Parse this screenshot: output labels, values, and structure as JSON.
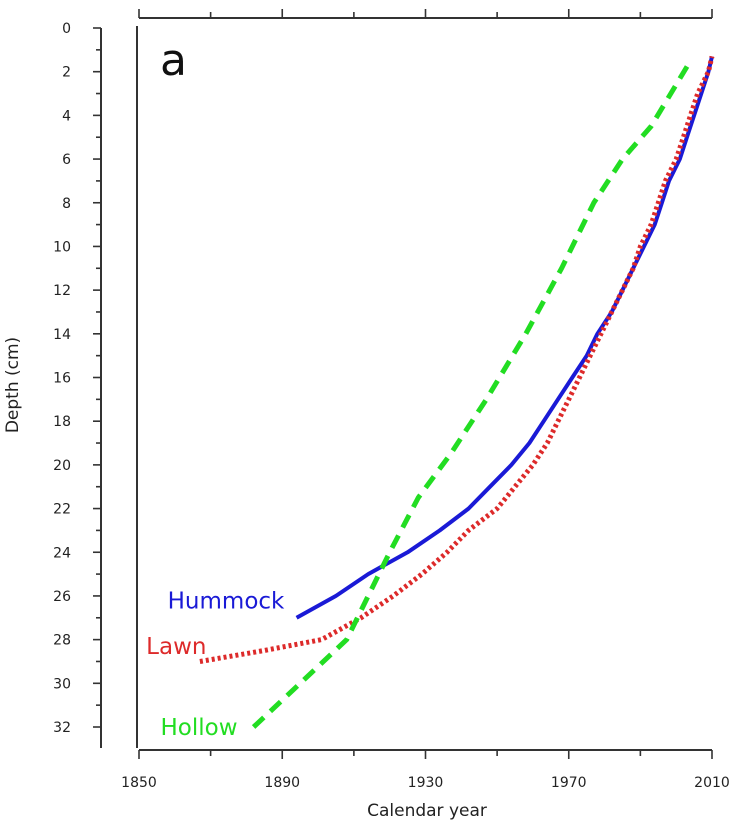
{
  "chart_data": {
    "type": "line",
    "panel_label": "a",
    "xlabel": "Calendar year",
    "ylabel": "Depth (cm)",
    "xlim": [
      1850,
      2010
    ],
    "ylim": [
      0,
      32
    ],
    "y_inverted": true,
    "x_ticks": [
      1850,
      1890,
      1930,
      1970,
      2010
    ],
    "y_ticks": [
      0,
      2,
      4,
      6,
      8,
      10,
      12,
      14,
      16,
      18,
      20,
      22,
      24,
      26,
      28,
      30,
      32
    ],
    "grid": false,
    "series": [
      {
        "name": "Hummock",
        "color": "#1a1ad6",
        "style": "solid",
        "points": [
          [
            1894,
            27
          ],
          [
            1905,
            26
          ],
          [
            1914,
            25
          ],
          [
            1925,
            24
          ],
          [
            1934,
            23
          ],
          [
            1942,
            22
          ],
          [
            1948,
            21
          ],
          [
            1954,
            20
          ],
          [
            1959,
            19
          ],
          [
            1963,
            18
          ],
          [
            1967,
            17
          ],
          [
            1971,
            16
          ],
          [
            1975,
            15
          ],
          [
            1978,
            14
          ],
          [
            1982,
            13
          ],
          [
            1985,
            12
          ],
          [
            1988,
            11
          ],
          [
            1991,
            10
          ],
          [
            1994,
            9
          ],
          [
            1996,
            8
          ],
          [
            1998,
            7
          ],
          [
            2001,
            6
          ],
          [
            2003,
            5
          ],
          [
            2005,
            4
          ],
          [
            2007,
            3
          ],
          [
            2009,
            2
          ],
          [
            2010,
            1.3
          ]
        ]
      },
      {
        "name": "Lawn",
        "color": "#dd2a2a",
        "style": "dotted",
        "points": [
          [
            1867,
            29
          ],
          [
            1885,
            28.5
          ],
          [
            1901,
            28
          ],
          [
            1912,
            27
          ],
          [
            1921,
            26
          ],
          [
            1929,
            25
          ],
          [
            1936,
            24
          ],
          [
            1942,
            23
          ],
          [
            1950,
            22
          ],
          [
            1955,
            21
          ],
          [
            1960,
            20
          ],
          [
            1964,
            19
          ],
          [
            1967,
            18
          ],
          [
            1970,
            17
          ],
          [
            1973,
            16
          ],
          [
            1976,
            15
          ],
          [
            1979,
            14
          ],
          [
            1982,
            13
          ],
          [
            1985,
            12
          ],
          [
            1988,
            11
          ],
          [
            1990,
            10
          ],
          [
            1993,
            9
          ],
          [
            1995,
            8
          ],
          [
            1997,
            7
          ],
          [
            2000,
            6
          ],
          [
            2002,
            5
          ],
          [
            2004,
            4
          ],
          [
            2006,
            3
          ],
          [
            2009,
            2
          ],
          [
            2010,
            1.3
          ]
        ]
      },
      {
        "name": "Hollow",
        "color": "#22dd22",
        "style": "dashed",
        "points": [
          [
            1882,
            32
          ],
          [
            1895,
            30
          ],
          [
            1908,
            28
          ],
          [
            1920,
            24
          ],
          [
            1928,
            21.5
          ],
          [
            1937,
            19.5
          ],
          [
            1947,
            17
          ],
          [
            1958,
            14
          ],
          [
            1968,
            11
          ],
          [
            1977,
            8
          ],
          [
            1985,
            6
          ],
          [
            1993,
            4.5
          ],
          [
            2004,
            1.5
          ]
        ]
      }
    ],
    "series_labels": [
      {
        "text": "Hummock",
        "color": "#1a1ad6",
        "anchor": [
          1858,
          26.2
        ]
      },
      {
        "text": "Lawn",
        "color": "#dd2a2a",
        "anchor": [
          1852,
          28.3
        ]
      },
      {
        "text": "Hollow",
        "color": "#22dd22",
        "anchor": [
          1856,
          32
        ]
      }
    ]
  }
}
